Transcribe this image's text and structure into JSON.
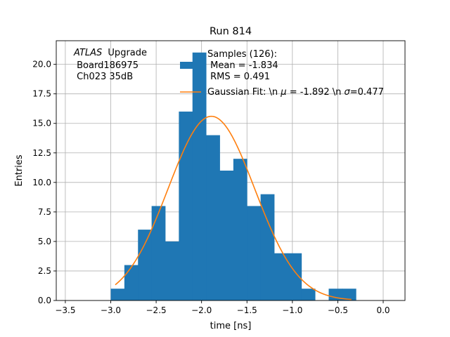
{
  "chart_data": {
    "type": "bar",
    "title": "Run 814",
    "xlabel": "time [ns]",
    "ylabel": "Entries",
    "xlim": [
      -3.6,
      0.24
    ],
    "ylim": [
      0,
      22
    ],
    "grid": true,
    "xticks": [
      -3.5,
      -3.0,
      -2.5,
      -2.0,
      -1.5,
      -1.0,
      -0.5,
      0.0
    ],
    "xtick_labels": [
      "−3.5",
      "−3.0",
      "−2.5",
      "−2.0",
      "−1.5",
      "−1.0",
      "−0.5",
      "0.0"
    ],
    "yticks": [
      0,
      2.5,
      5,
      7.5,
      10,
      12.5,
      15,
      17.5,
      20
    ],
    "ytick_labels": [
      "0.0",
      "2.5",
      "5.0",
      "7.5",
      "10.0",
      "12.5",
      "15.0",
      "17.5",
      "20.0"
    ],
    "bin_width": 0.15,
    "bin_edges": [
      -3.0,
      -2.85,
      -2.7,
      -2.55,
      -2.4,
      -2.25,
      -2.1,
      -1.95,
      -1.8,
      -1.65,
      -1.5,
      -1.35,
      -1.2,
      -1.05,
      -0.9,
      -0.75,
      -0.6,
      -0.45,
      -0.3
    ],
    "histogram_values": [
      1,
      3,
      6,
      8,
      5,
      16,
      21,
      14,
      11,
      12,
      8,
      9,
      4,
      4,
      1,
      0,
      1,
      1
    ],
    "fit_curve": {
      "name": "Gaussian Fit",
      "mu": -1.892,
      "sigma": 0.477,
      "amplitude": 15.6,
      "x_start": -2.95,
      "x_end": -0.35
    },
    "series_colors": {
      "histogram": "#1f77b4",
      "fit": "#ff7f0e"
    },
    "annotation_lines": [
      "Upgrade",
      " Board186975",
      " Ch023 35dB"
    ],
    "annotation_italic": "ATLAS",
    "legend": {
      "location": "top-right",
      "samples_lines": [
        "Samples (126):",
        " Mean = -1.834",
        " RMS = 0.491"
      ],
      "fit_label_parts": [
        "Gaussian Fit: \\n ",
        "μ",
        " = -1.892 \\n ",
        "σ",
        "=0.477"
      ]
    }
  }
}
